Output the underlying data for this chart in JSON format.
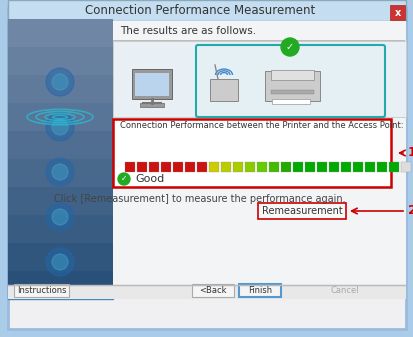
{
  "title": "Connection Performance Measurement",
  "bg_outer": "#aacce8",
  "bg_dialog": "#f0f0f0",
  "title_bar_bg": "#c8dff0",
  "title_bar_text_color": "#333333",
  "close_btn_color": "#9b59b6",
  "close_btn_bg": "#cc4444",
  "results_text": "The results are as follows.",
  "perf_label": "Connection Performance between the Printer and the Access Point:",
  "good_text": "Good",
  "remeasure_text": "Click [Remeasurement] to measure the performance again.",
  "remeasure_btn": "Remeasurement",
  "btn_instructions": "Instructions",
  "btn_back": "<Back",
  "btn_finish": "Finish",
  "btn_cancel": "Cancel",
  "annotation_1_color": "#cc0000",
  "annotation_2_color": "#cc0000",
  "perf_box_border": "#cc0000",
  "finish_btn_border": "#5599cc",
  "inner_box_border": "#00aaaa",
  "footer_bg": "#e8e8e8",
  "content_bg": "#f5f5f5",
  "left_panel_top_color": "#88bbdd",
  "left_panel_bottom_color": "#3388bb",
  "dialog_bg": "#eef4f8"
}
